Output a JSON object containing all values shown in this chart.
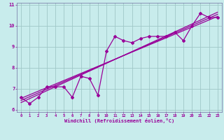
{
  "title": "",
  "xlabel": "Windchill (Refroidissement éolien,°C)",
  "ylabel": "",
  "background_color": "#c8ecec",
  "grid_color": "#a0c8c8",
  "line_color": "#990099",
  "spine_color": "#7070a0",
  "xlim": [
    -0.5,
    23.5
  ],
  "ylim": [
    5.9,
    11.1
  ],
  "xticks": [
    0,
    1,
    2,
    3,
    4,
    5,
    6,
    7,
    8,
    9,
    10,
    11,
    12,
    13,
    14,
    15,
    16,
    17,
    18,
    19,
    20,
    21,
    22,
    23
  ],
  "yticks": [
    6,
    7,
    8,
    9,
    10,
    11
  ],
  "scatter_x": [
    0,
    1,
    2,
    3,
    4,
    5,
    6,
    7,
    8,
    9,
    10,
    11,
    12,
    13,
    14,
    15,
    16,
    17,
    18,
    19,
    20,
    21,
    22,
    23
  ],
  "scatter_y": [
    6.6,
    6.3,
    6.6,
    7.1,
    7.1,
    7.1,
    6.6,
    7.6,
    7.5,
    6.7,
    8.8,
    9.5,
    9.3,
    9.2,
    9.4,
    9.5,
    9.5,
    9.5,
    9.7,
    9.3,
    10.0,
    10.6,
    10.4,
    10.4
  ],
  "line1_x": [
    0,
    23
  ],
  "line1_y": [
    6.55,
    10.45
  ],
  "line2_x": [
    0,
    23
  ],
  "line2_y": [
    6.45,
    10.55
  ],
  "line3_x": [
    0,
    23
  ],
  "line3_y": [
    6.35,
    10.65
  ]
}
